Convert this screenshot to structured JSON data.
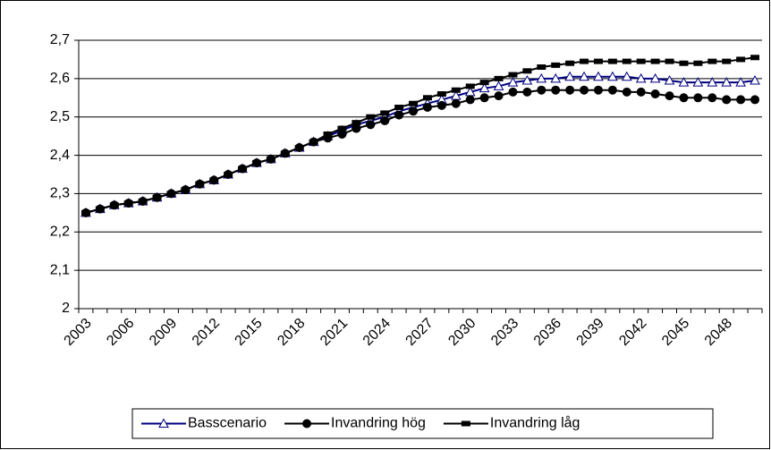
{
  "chart_data": {
    "type": "line",
    "categories": [
      "2003",
      null,
      null,
      "2006",
      null,
      null,
      "2009",
      null,
      null,
      "2012",
      null,
      null,
      "2015",
      null,
      null,
      "2018",
      null,
      null,
      "2021",
      null,
      null,
      "2024",
      null,
      null,
      "2027",
      null,
      null,
      "2030",
      null,
      null,
      "2033",
      null,
      null,
      "2036",
      null,
      null,
      "2039",
      null,
      null,
      "2042",
      null,
      null,
      "2045",
      null,
      null,
      "2048",
      null,
      null
    ],
    "series": [
      {
        "name": "Basscenario",
        "color": "#000080",
        "marker": "triangle",
        "values": [
          2.25,
          2.26,
          2.27,
          2.275,
          2.28,
          2.29,
          2.3,
          2.31,
          2.325,
          2.335,
          2.35,
          2.365,
          2.38,
          2.39,
          2.405,
          2.42,
          2.435,
          2.45,
          2.465,
          2.48,
          2.49,
          2.5,
          2.515,
          2.525,
          2.535,
          2.545,
          2.555,
          2.565,
          2.575,
          2.58,
          2.59,
          2.595,
          2.6,
          2.6,
          2.605,
          2.605,
          2.605,
          2.605,
          2.605,
          2.6,
          2.6,
          2.595,
          2.59,
          2.59,
          2.59,
          2.59,
          2.59,
          2.595
        ]
      },
      {
        "name": "Invandring hög",
        "color": "#000000",
        "marker": "circle",
        "values": [
          2.25,
          2.26,
          2.27,
          2.275,
          2.28,
          2.29,
          2.3,
          2.31,
          2.325,
          2.335,
          2.35,
          2.365,
          2.38,
          2.39,
          2.405,
          2.42,
          2.435,
          2.445,
          2.455,
          2.47,
          2.48,
          2.49,
          2.505,
          2.515,
          2.525,
          2.53,
          2.535,
          2.545,
          2.55,
          2.555,
          2.565,
          2.565,
          2.57,
          2.57,
          2.57,
          2.57,
          2.57,
          2.57,
          2.565,
          2.565,
          2.56,
          2.555,
          2.55,
          2.55,
          2.55,
          2.545,
          2.545,
          2.545
        ]
      },
      {
        "name": "Invandring låg",
        "color": "#000000",
        "marker": "dash",
        "values": [
          2.25,
          2.26,
          2.27,
          2.275,
          2.28,
          2.29,
          2.3,
          2.31,
          2.325,
          2.335,
          2.35,
          2.365,
          2.38,
          2.39,
          2.405,
          2.42,
          2.435,
          2.455,
          2.47,
          2.485,
          2.5,
          2.51,
          2.525,
          2.535,
          2.55,
          2.56,
          2.57,
          2.58,
          2.59,
          2.6,
          2.61,
          2.62,
          2.63,
          2.635,
          2.64,
          2.645,
          2.645,
          2.645,
          2.645,
          2.645,
          2.645,
          2.645,
          2.64,
          2.64,
          2.645,
          2.645,
          2.65,
          2.655
        ]
      }
    ],
    "ylim": [
      2,
      2.7
    ],
    "yticks": [
      2,
      {
        "value": 2.1,
        "label": "2,1"
      },
      {
        "value": 2.2,
        "label": "2,2"
      },
      {
        "value": 2.3,
        "label": "2,3"
      },
      {
        "value": 2.4,
        "label": "2,4"
      },
      {
        "value": 2.5,
        "label": "2,5"
      },
      {
        "value": 2.6,
        "label": "2,6"
      },
      {
        "value": 2.7,
        "label": "2,7"
      }
    ],
    "grid": true,
    "legend": "bottom"
  }
}
